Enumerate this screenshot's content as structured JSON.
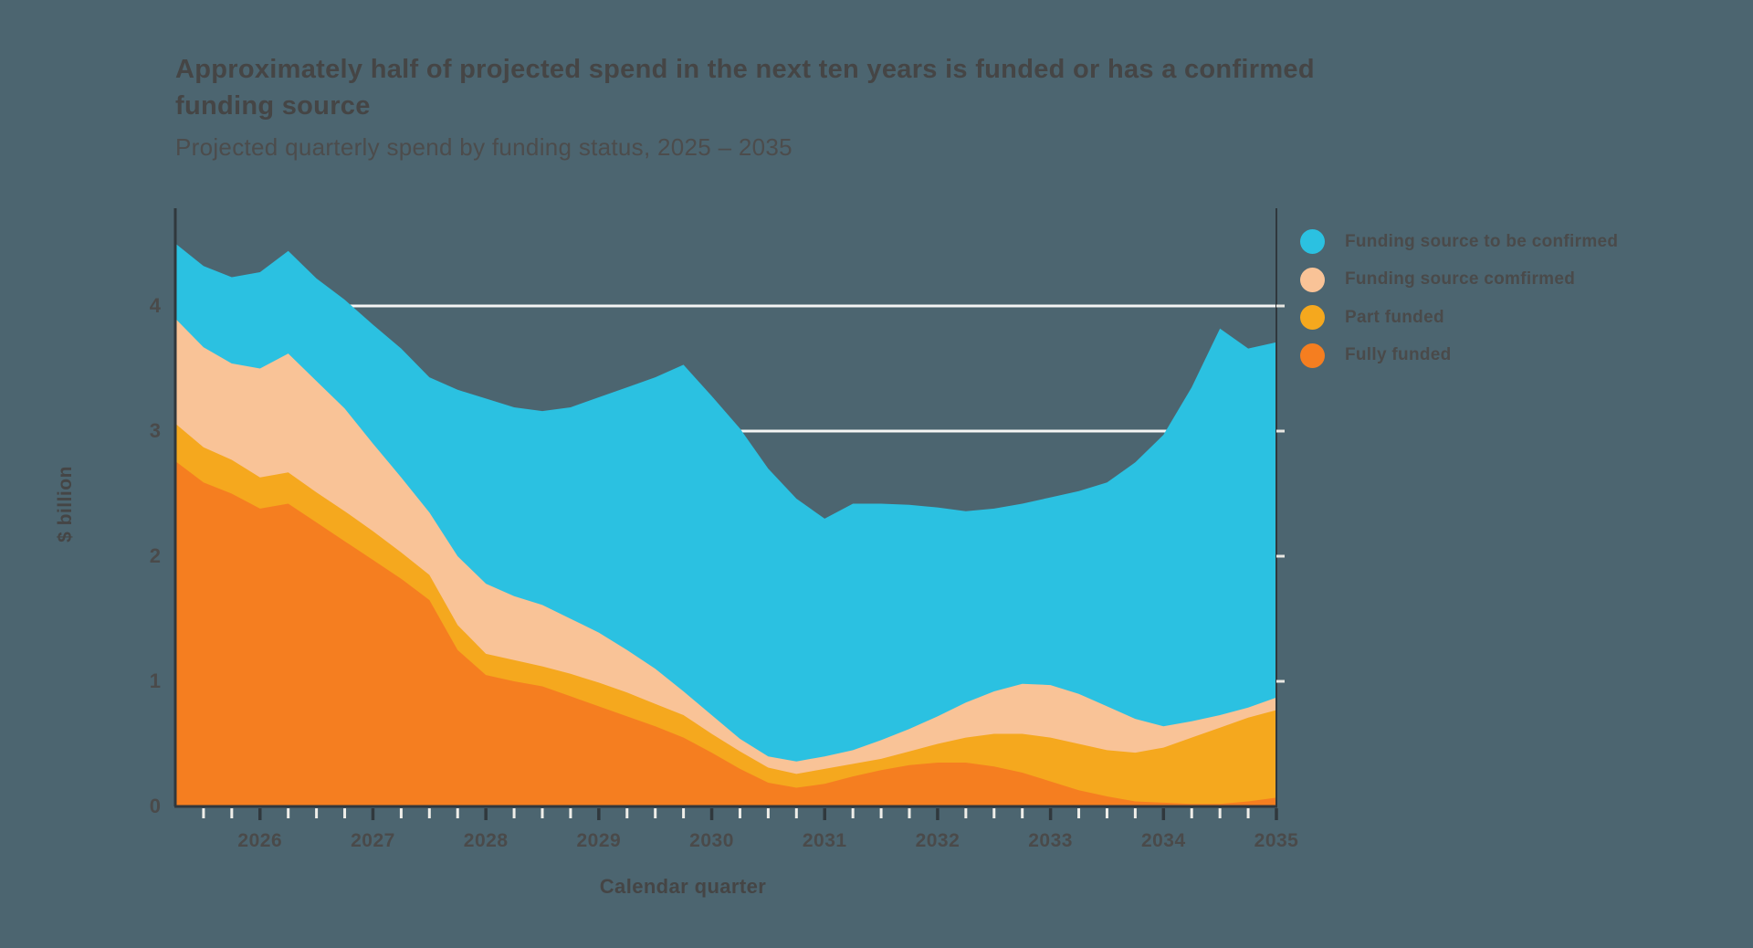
{
  "page": {
    "background_color": "#4C6570",
    "text_color": "#454545"
  },
  "header": {
    "title_line1": "Approximately half of projected spend in the next ten years is funded or has a confirmed",
    "title_line2": "funding source",
    "subtitle": "Projected quarterly spend by funding status, 2025 – 2035"
  },
  "legend": {
    "position": "top-right",
    "items": [
      {
        "label": "Funding source to be confirmed",
        "color": "#2BC1E1"
      },
      {
        "label": "Funding source comfirmed",
        "color": "#F9C397"
      },
      {
        "label": "Part funded",
        "color": "#F5A81E"
      },
      {
        "label": "Fully funded",
        "color": "#F57E20"
      }
    ]
  },
  "axes": {
    "y": {
      "label": "$ billion",
      "ticks": [
        "0",
        "1",
        "2",
        "3",
        "4"
      ],
      "tick_values": [
        0,
        1,
        2,
        3,
        4
      ],
      "max": 4.8
    },
    "x": {
      "label": "Calendar quarter",
      "tick_years": [
        "2026",
        "2027",
        "2028",
        "2029",
        "2030",
        "2031",
        "2032",
        "2033",
        "2034",
        "2035"
      ],
      "minor_tick_step_years": 0.25
    }
  },
  "style": {
    "gridline_color": "#F5F5F4",
    "axis_line_color": "#30383D",
    "quarter_tick_color": "#EFEEE9",
    "year_tick_color": "#30383D",
    "right_axis_tick_color": "#E8E7E2",
    "tick_label_color": "#4A4A4A"
  },
  "chart_data": {
    "type": "area",
    "stacked": true,
    "title": "Approximately half of projected spend in the next ten years is funded or has a confirmed funding source",
    "subtitle": "Projected quarterly spend by funding status, 2025 – 2035",
    "xlabel": "Calendar quarter",
    "ylabel": "$ billion",
    "ylim": [
      0,
      4.8
    ],
    "grid": "horizontal, white, behind areas, at 1,2,3,4",
    "legend_position": "top-right",
    "x_unit": "calendar quarters expressed as decimal years",
    "x": [
      2025.25,
      2025.5,
      2025.75,
      2026.0,
      2026.25,
      2026.5,
      2026.75,
      2027.0,
      2027.25,
      2027.5,
      2027.75,
      2028.0,
      2028.25,
      2028.5,
      2028.75,
      2029.0,
      2029.25,
      2029.5,
      2029.75,
      2030.0,
      2030.25,
      2030.5,
      2030.75,
      2031.0,
      2031.25,
      2031.5,
      2031.75,
      2032.0,
      2032.25,
      2032.5,
      2032.75,
      2033.0,
      2033.25,
      2033.5,
      2033.75,
      2034.0,
      2034.25,
      2034.5,
      2034.75,
      2035.0
    ],
    "series": [
      {
        "name": "Fully funded",
        "color": "#F57E20",
        "values": [
          2.76,
          2.59,
          2.5,
          2.38,
          2.42,
          2.27,
          2.12,
          1.97,
          1.82,
          1.65,
          1.25,
          1.05,
          1.0,
          0.96,
          0.88,
          0.8,
          0.72,
          0.64,
          0.55,
          0.43,
          0.3,
          0.19,
          0.15,
          0.18,
          0.24,
          0.29,
          0.33,
          0.35,
          0.35,
          0.32,
          0.27,
          0.2,
          0.13,
          0.08,
          0.04,
          0.03,
          0.02,
          0.02,
          0.04,
          0.07
        ]
      },
      {
        "name": "Part funded",
        "color": "#F5A81E",
        "values": [
          0.3,
          0.28,
          0.27,
          0.25,
          0.25,
          0.24,
          0.24,
          0.23,
          0.21,
          0.2,
          0.2,
          0.17,
          0.17,
          0.16,
          0.18,
          0.19,
          0.19,
          0.18,
          0.18,
          0.15,
          0.14,
          0.12,
          0.11,
          0.12,
          0.1,
          0.09,
          0.11,
          0.15,
          0.2,
          0.26,
          0.31,
          0.35,
          0.37,
          0.37,
          0.39,
          0.44,
          0.53,
          0.61,
          0.67,
          0.7
        ]
      },
      {
        "name": "Funding source comfirmed",
        "color": "#F9C397",
        "values": [
          0.84,
          0.8,
          0.77,
          0.87,
          0.95,
          0.89,
          0.82,
          0.7,
          0.6,
          0.5,
          0.55,
          0.56,
          0.51,
          0.49,
          0.44,
          0.4,
          0.34,
          0.28,
          0.19,
          0.15,
          0.1,
          0.09,
          0.1,
          0.1,
          0.11,
          0.15,
          0.18,
          0.22,
          0.28,
          0.34,
          0.4,
          0.42,
          0.4,
          0.35,
          0.27,
          0.17,
          0.13,
          0.1,
          0.08,
          0.1
        ]
      },
      {
        "name": "Funding source to be confirmed",
        "color": "#2BC1E1",
        "values": [
          0.6,
          0.65,
          0.69,
          0.77,
          0.82,
          0.82,
          0.87,
          0.95,
          1.03,
          1.08,
          1.33,
          1.48,
          1.51,
          1.55,
          1.69,
          1.88,
          2.1,
          2.33,
          2.61,
          2.55,
          2.48,
          2.3,
          2.1,
          1.9,
          1.97,
          1.89,
          1.79,
          1.67,
          1.53,
          1.46,
          1.44,
          1.5,
          1.62,
          1.79,
          2.05,
          2.33,
          2.67,
          3.09,
          2.87,
          2.84
        ]
      }
    ]
  }
}
